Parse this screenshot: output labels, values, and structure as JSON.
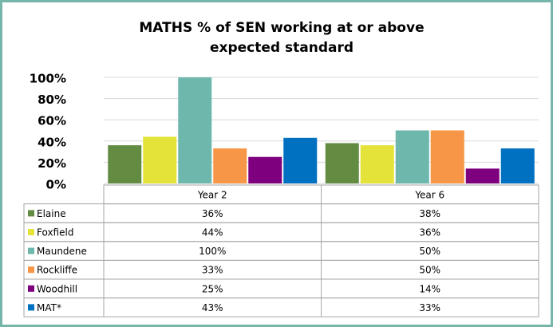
{
  "chart_data": {
    "type": "bar",
    "title": "MATHS % of SEN working at or above expected standard",
    "categories": [
      "Year 2",
      "Year 6"
    ],
    "series": [
      {
        "name": "Elaine",
        "color": "#638c42",
        "values": [
          36,
          38
        ],
        "value_labels": [
          "36%",
          "38%"
        ]
      },
      {
        "name": "Foxfield",
        "color": "#e3e33a",
        "values": [
          44,
          36
        ],
        "value_labels": [
          "44%",
          "36%"
        ]
      },
      {
        "name": "Maundene",
        "color": "#6db7ad",
        "values": [
          100,
          50
        ],
        "value_labels": [
          "100%",
          "50%"
        ]
      },
      {
        "name": "Rockliffe",
        "color": "#f79646",
        "values": [
          33,
          50
        ],
        "value_labels": [
          "33%",
          "50%"
        ]
      },
      {
        "name": "Woodhill",
        "color": "#7f007f",
        "values": [
          25,
          14
        ],
        "value_labels": [
          "25%",
          "14%"
        ]
      },
      {
        "name": "MAT*",
        "color": "#0070c0",
        "values": [
          43,
          33
        ],
        "value_labels": [
          "43%",
          "33%"
        ]
      }
    ],
    "ylim": [
      0,
      100
    ],
    "yticks": [
      {
        "value": 0,
        "label": "0%"
      },
      {
        "value": 20,
        "label": "20%"
      },
      {
        "value": 40,
        "label": "40%"
      },
      {
        "value": 60,
        "label": "60%"
      },
      {
        "value": 80,
        "label": "80%"
      },
      {
        "value": 100,
        "label": "100%"
      }
    ],
    "grid": true
  }
}
